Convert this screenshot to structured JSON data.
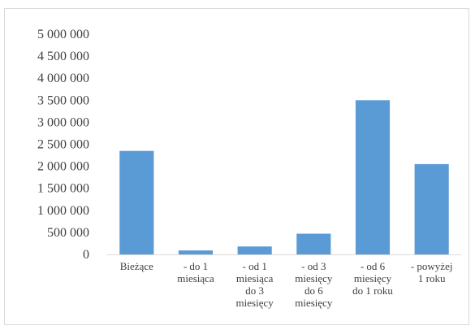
{
  "chart_data": {
    "type": "bar",
    "categories": [
      [
        "Bieżące"
      ],
      [
        "- do 1",
        "miesiąca"
      ],
      [
        "- od 1",
        "miesiąca",
        "do 3",
        "miesięcy"
      ],
      [
        "- od 3",
        "miesięcy",
        "do 6",
        "miesięcy"
      ],
      [
        "- od 6",
        "miesięcy",
        "do 1 roku"
      ],
      [
        "- powyżej",
        "1 roku"
      ]
    ],
    "values": [
      2350000,
      90000,
      180000,
      470000,
      3500000,
      2050000
    ],
    "ylim": [
      0,
      5000000
    ],
    "yticks": [
      0,
      500000,
      1000000,
      1500000,
      2000000,
      2500000,
      3000000,
      3500000,
      4000000,
      4500000,
      5000000
    ],
    "ytick_labels": [
      "0",
      "500 000",
      "1 000 000",
      "1 500 000",
      "2 000 000",
      "2 500 000",
      "3 000 000",
      "3 500 000",
      "4 000 000",
      "4 500 000",
      "5 000 000"
    ],
    "bar_color": "#5b9bd5",
    "axis_color": "#d9d9d9",
    "grid": false,
    "legend": false
  }
}
